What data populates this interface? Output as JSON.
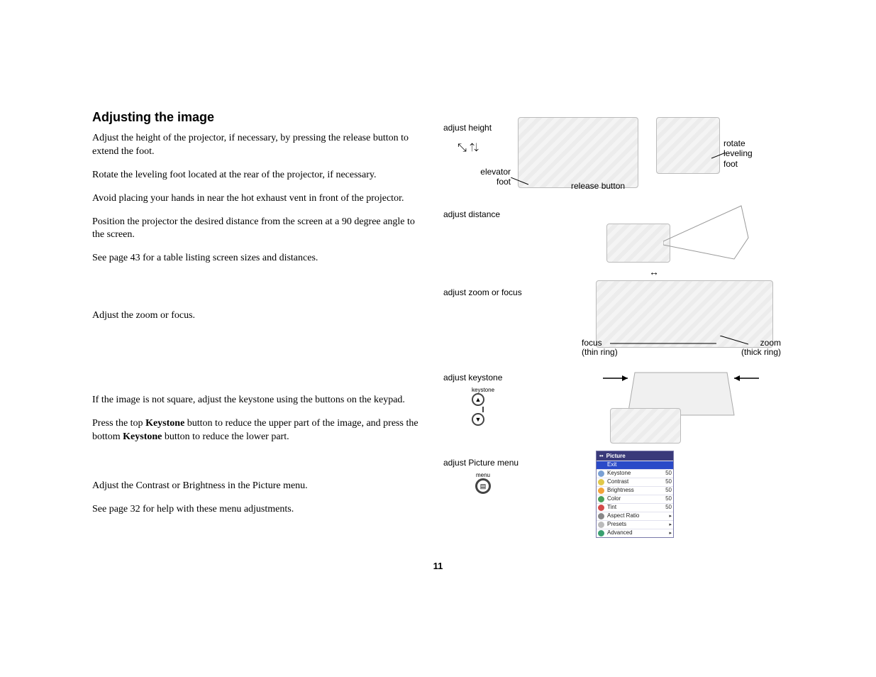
{
  "heading": "Adjusting the image",
  "paragraphs": {
    "p1": "Adjust the height of the projector, if necessary, by pressing the release button to extend the foot.",
    "p2": "Rotate the leveling foot located at the rear of the projector, if necessary.",
    "p3": "Avoid placing your hands in near the hot exhaust vent in front of the projector.",
    "p4": "Position the projector the desired distance from the screen at a 90 degree angle to the screen.",
    "p5": "See page 43 for a table listing screen sizes and distances.",
    "p6": "Adjust the zoom or focus.",
    "p7a": "If the image is not square, adjust the keystone using the buttons on the keypad.",
    "p7b_pre": "Press the top ",
    "p7b_kw": "Keystone",
    "p7b_mid": " button to reduce the upper part of the image, and press the bottom ",
    "p7b_post": " button to reduce the lower part.",
    "p8": "Adjust the Contrast or Brightness in the Picture menu.",
    "p9": "See page 32 for help with these menu adjustments."
  },
  "page_number": "11",
  "fig": {
    "row1": {
      "title": "adjust height",
      "elevator_foot": "elevator foot",
      "release_button": "release button",
      "rotate_leveling_foot_l1": "rotate",
      "rotate_leveling_foot_l2": "leveling",
      "rotate_leveling_foot_l3": "foot"
    },
    "row2": {
      "title": "adjust distance"
    },
    "row3": {
      "title": "adjust zoom or focus",
      "focus_l1": "focus",
      "focus_l2": "(thin ring)",
      "zoom_l1": "zoom",
      "zoom_l2": "(thick ring)"
    },
    "row4": {
      "title": "adjust keystone",
      "keystone_label": "keystone"
    },
    "row5": {
      "title": "adjust Picture menu",
      "menu_label": "menu"
    }
  },
  "menu": {
    "title": "Picture",
    "items": [
      {
        "label": "Exit",
        "value": "",
        "icon_color": "#2a4ac8",
        "selected": true
      },
      {
        "label": "Keystone",
        "value": "50",
        "icon_color": "#7aa0d4",
        "selected": false
      },
      {
        "label": "Contrast",
        "value": "50",
        "icon_color": "#e0c84a",
        "selected": false
      },
      {
        "label": "Brightness",
        "value": "50",
        "icon_color": "#f3a33a",
        "selected": false
      },
      {
        "label": "Color",
        "value": "50",
        "icon_color": "#4aa05a",
        "selected": false
      },
      {
        "label": "Tint",
        "value": "50",
        "icon_color": "#d44a4a",
        "selected": false
      },
      {
        "label": "Aspect Ratio",
        "value": "▸",
        "icon_color": "#888888",
        "selected": false
      },
      {
        "label": "Presets",
        "value": "▸",
        "icon_color": "#bbbbbb",
        "selected": false
      },
      {
        "label": "Advanced",
        "value": "▸",
        "icon_color": "#3aa070",
        "selected": false
      }
    ]
  },
  "colors": {
    "menu_header_bg": "#3a3a7a",
    "menu_selected_bg": "#2a4ac8",
    "text": "#000000",
    "page_bg": "#ffffff"
  },
  "fonts": {
    "heading_family": "Arial",
    "heading_size_pt": 14,
    "body_family": "Georgia",
    "body_size_pt": 11,
    "label_family": "Arial",
    "label_size_pt": 9
  }
}
